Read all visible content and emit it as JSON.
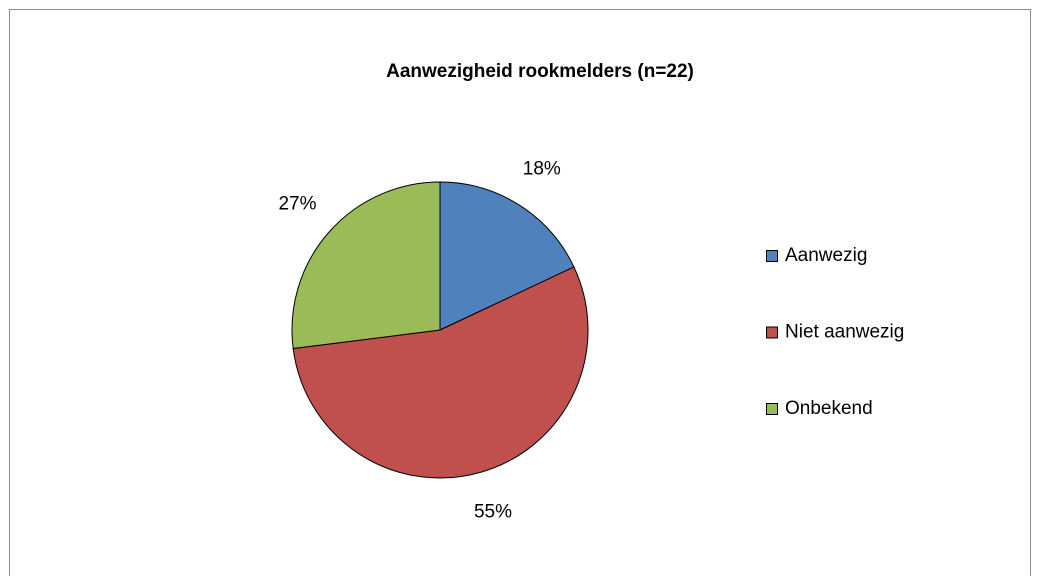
{
  "chart_data": {
    "type": "pie",
    "title": "Aanwezigheid rookmelders (n=22)",
    "categories": [
      "Aanwezig",
      "Niet aanwezig",
      "Onbekend"
    ],
    "values": [
      18,
      55,
      27
    ],
    "value_labels": [
      "18%",
      "55%",
      "27%"
    ],
    "colors": [
      "#4f81bd",
      "#c0504d",
      "#9bbb59"
    ],
    "legend": "right"
  }
}
